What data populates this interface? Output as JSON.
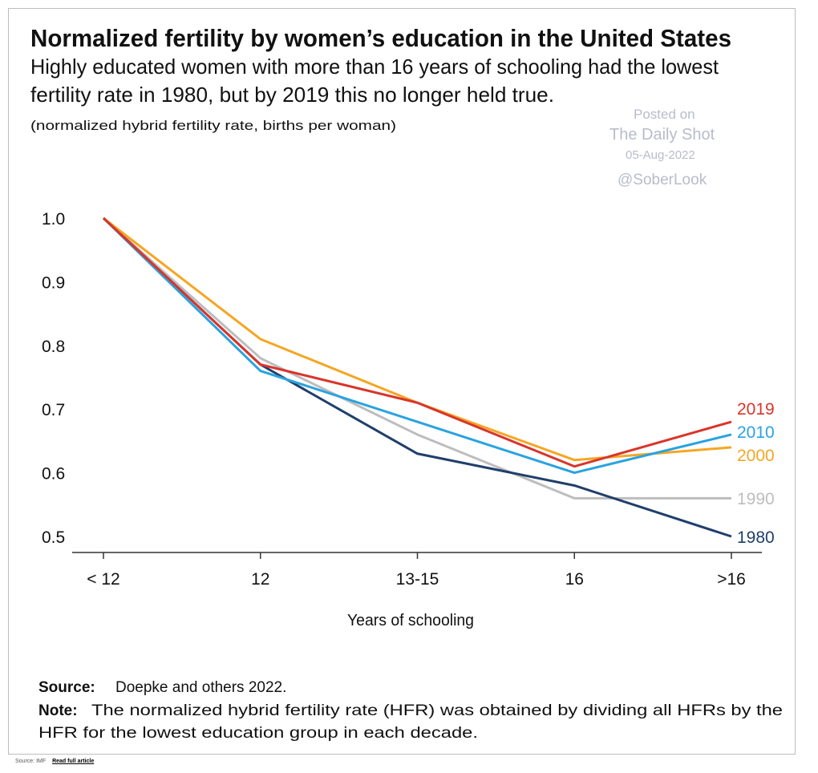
{
  "chart_data": {
    "type": "line",
    "title": "Normalized fertility by women’s education in the United States",
    "subtitle_lines": [
      "Highly educated women with more than 16 years of schooling had the lowest",
      "fertility rate in 1980, but by 2019 this no longer held true."
    ],
    "units_note": "(normalized hybrid fertility rate, births per woman)",
    "xlabel": "Years of schooling",
    "ylabel": "",
    "categories": [
      "< 12",
      "12",
      "13-15",
      "16",
      ">16"
    ],
    "ylim": [
      0.5,
      1.0
    ],
    "yticks": [
      "1.0",
      "0.9",
      "0.8",
      "0.7",
      "0.6",
      "0.5"
    ],
    "grid": false,
    "legend": "inline-right",
    "series": [
      {
        "name": "1990",
        "color": "#bdbdbd",
        "values": [
          1.0,
          0.78,
          0.66,
          0.56,
          0.56
        ]
      },
      {
        "name": "1980",
        "color": "#1f3f6b",
        "values": [
          1.0,
          0.77,
          0.63,
          0.58,
          0.5
        ]
      },
      {
        "name": "2000",
        "color": "#f5a623",
        "values": [
          1.0,
          0.81,
          0.71,
          0.62,
          0.64
        ]
      },
      {
        "name": "2010",
        "color": "#29a3e0",
        "values": [
          1.0,
          0.76,
          0.68,
          0.6,
          0.66
        ]
      },
      {
        "name": "2019",
        "color": "#d9352b",
        "values": [
          1.0,
          0.77,
          0.71,
          0.61,
          0.68
        ]
      }
    ]
  },
  "source": {
    "label": "Source:",
    "text": "Doepke and others 2022."
  },
  "note": {
    "label": "Note:",
    "lines": [
      "The normalized hybrid fertility rate (HFR) was obtained by dividing all HFRs by the",
      "HFR for the lowest education group in each decade."
    ]
  },
  "watermark": {
    "line1": "Posted on",
    "line2": "The Daily Shot",
    "date": "05-Aug-2022",
    "handle": "@SoberLook"
  },
  "footer": {
    "source": "Source: IMF",
    "link": "Read full article"
  }
}
